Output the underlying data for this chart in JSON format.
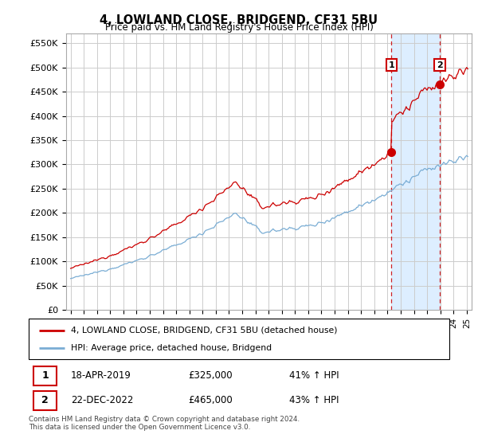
{
  "title": "4, LOWLAND CLOSE, BRIDGEND, CF31 5BU",
  "subtitle": "Price paid vs. HM Land Registry's House Price Index (HPI)",
  "ylim": [
    0,
    570000
  ],
  "yticks": [
    0,
    50000,
    100000,
    150000,
    200000,
    250000,
    300000,
    350000,
    400000,
    450000,
    500000,
    550000
  ],
  "ytick_labels": [
    "£0",
    "£50K",
    "£100K",
    "£150K",
    "£200K",
    "£250K",
    "£300K",
    "£350K",
    "£400K",
    "£450K",
    "£500K",
    "£550K"
  ],
  "hpi_color": "#7aadd4",
  "price_color": "#cc0000",
  "shade_color": "#ddeeff",
  "marker1_date": 2019.29,
  "marker1_value": 325000,
  "marker2_date": 2022.96,
  "marker2_value": 465000,
  "legend_label_red": "4, LOWLAND CLOSE, BRIDGEND, CF31 5BU (detached house)",
  "legend_label_blue": "HPI: Average price, detached house, Bridgend",
  "annotation1_date": "18-APR-2019",
  "annotation1_price": "£325,000",
  "annotation1_hpi": "41% ↑ HPI",
  "annotation2_date": "22-DEC-2022",
  "annotation2_price": "£465,000",
  "annotation2_hpi": "43% ↑ HPI",
  "footer": "Contains HM Land Registry data © Crown copyright and database right 2024.\nThis data is licensed under the Open Government Licence v3.0.",
  "background_color": "#ffffff",
  "grid_color": "#cccccc"
}
